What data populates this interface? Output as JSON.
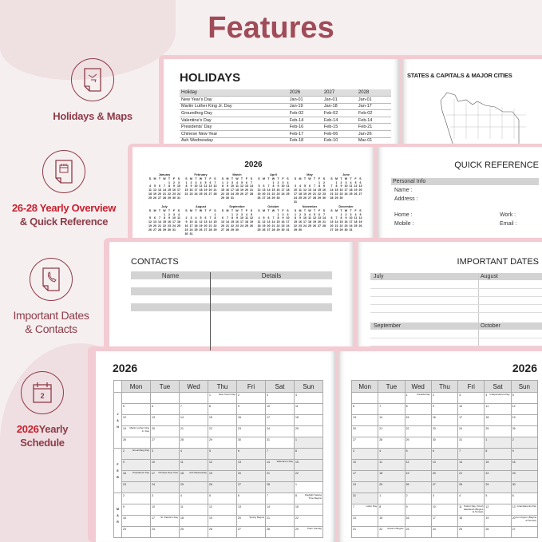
{
  "title": "Features",
  "features": [
    {
      "icon": "map-document-icon",
      "line1": "Holidays & Maps",
      "line1_red": "",
      "line2": ""
    },
    {
      "icon": "notepad-document-icon",
      "line1": "",
      "line1_red": "26-28 Yearly Overview",
      "line2": "& Quick Reference"
    },
    {
      "icon": "phone-document-icon",
      "line1": "Important Dates",
      "line1_red": "",
      "line2": "& Contacts"
    },
    {
      "icon": "calendar-icon",
      "line1": "Yearly",
      "line1_red": "2026",
      "line2": "Schedule",
      "calendar_number": "2"
    }
  ],
  "holidays": {
    "title": "HOLIDAYS",
    "headers": [
      "Holiday",
      "2026",
      "2027",
      "2028"
    ],
    "rows": [
      [
        "New Year's Day",
        "Jan-01",
        "Jan-01",
        "Jan-01"
      ],
      [
        "Martin Luther King Jr. Day",
        "Jan-19",
        "Jan-18",
        "Jan-17"
      ],
      [
        "Groundhog Day",
        "Feb-02",
        "Feb-02",
        "Feb-02"
      ],
      [
        "Valentine's Day",
        "Feb-14",
        "Feb-14",
        "Feb-14"
      ],
      [
        "Presidents' Day",
        "Feb-16",
        "Feb-15",
        "Feb-21"
      ],
      [
        "Chinese New Year",
        "Feb-17",
        "Feb-06",
        "Jan-26"
      ],
      [
        "Ash Wednesday",
        "Feb-18",
        "Feb-10",
        "Mar-01"
      ]
    ]
  },
  "map": {
    "title": "STATES & CAPITALS & MAJOR CITIES"
  },
  "yearly": {
    "year": "2026",
    "dow": [
      "S",
      "M",
      "T",
      "W",
      "T",
      "F",
      "S"
    ],
    "months": [
      {
        "name": "January",
        "start": 4,
        "days": 31
      },
      {
        "name": "February",
        "start": 0,
        "days": 28
      },
      {
        "name": "March",
        "start": 0,
        "days": 31
      },
      {
        "name": "April",
        "start": 3,
        "days": 30
      },
      {
        "name": "May",
        "start": 5,
        "days": 31
      },
      {
        "name": "June",
        "start": 1,
        "days": 30
      },
      {
        "name": "July",
        "start": 3,
        "days": 31
      },
      {
        "name": "August",
        "start": 6,
        "days": 31
      },
      {
        "name": "September",
        "start": 2,
        "days": 30
      },
      {
        "name": "October",
        "start": 4,
        "days": 31
      },
      {
        "name": "November",
        "start": 0,
        "days": 30
      },
      {
        "name": "December",
        "start": 2,
        "days": 31
      }
    ]
  },
  "quick": {
    "title": "QUICK REFERENCE",
    "section": "Personal Info",
    "name": "Name :",
    "address": "Address :",
    "home": "Home :",
    "work": "Work :",
    "mobile": "Mobile :",
    "email": "Email :"
  },
  "contacts": {
    "title": "CONTACTS",
    "col1": "Name",
    "col2": "Details"
  },
  "important": {
    "title": "IMPORTANT DATES",
    "m1": "July",
    "m2": "August",
    "m3": "September",
    "m4": "October"
  },
  "schedule": {
    "year": "2026",
    "days": [
      "Mon",
      "Tue",
      "Wed",
      "Thu",
      "Fri",
      "Sat",
      "Sun"
    ],
    "left": {
      "months": [
        {
          "label": "JAN",
          "rows": 5
        },
        {
          "label": "FEB",
          "rows": 4
        },
        {
          "label": "MAR",
          "rows": 4
        }
      ],
      "weeks": [
        [
          "",
          "",
          "",
          "1",
          "2",
          "3",
          "4"
        ],
        [
          "5",
          "6",
          "7",
          "8",
          "9",
          "10",
          "11"
        ],
        [
          "12",
          "13",
          "14",
          "15",
          "16",
          "17",
          "18"
        ],
        [
          "19",
          "20",
          "21",
          "22",
          "23",
          "24",
          "25"
        ],
        [
          "26",
          "27",
          "28",
          "29",
          "30",
          "31",
          "1"
        ],
        [
          "2",
          "3",
          "4",
          "5",
          "6",
          "7",
          "8"
        ],
        [
          "9",
          "10",
          "11",
          "12",
          "13",
          "14",
          "15"
        ],
        [
          "16",
          "17",
          "18",
          "19",
          "20",
          "21",
          "22"
        ],
        [
          "23",
          "24",
          "25",
          "26",
          "27",
          "28",
          "1"
        ],
        [
          "2",
          "3",
          "4",
          "5",
          "6",
          "7",
          "8"
        ],
        [
          "9",
          "10",
          "11",
          "12",
          "13",
          "14",
          "15"
        ],
        [
          "16",
          "17",
          "18",
          "19",
          "20",
          "21",
          "22"
        ],
        [
          "23",
          "24",
          "25",
          "26",
          "27",
          "28",
          "29"
        ]
      ],
      "shaded_from": [
        4,
        6
      ],
      "shaded_to": [
        8,
        5
      ],
      "events": {
        "0-3": "New Year's Day",
        "3-0": "Martin Luther King Jr. Day",
        "5-0": "Groundhog Day",
        "6-5": "Valentine's Day",
        "7-0": "Presidents' Day",
        "7-1": "Chinese New Year",
        "7-2": "Ash Wednesday",
        "8-6": "",
        "9-6": "Daylight Saving Time Begins",
        "11-1": "St. Patrick's Day",
        "11-4": "Spring Begins",
        "12-6": "Palm Sunday"
      }
    },
    "right": {
      "weeks": [
        [
          "",
          "",
          "1",
          "2",
          "3",
          "4",
          "5"
        ],
        [
          "6",
          "7",
          "8",
          "9",
          "10",
          "11",
          "12"
        ],
        [
          "13",
          "14",
          "15",
          "16",
          "17",
          "18",
          "19"
        ],
        [
          "20",
          "21",
          "22",
          "23",
          "24",
          "25",
          "26"
        ],
        [
          "27",
          "28",
          "29",
          "30",
          "31",
          "1",
          "2"
        ],
        [
          "3",
          "4",
          "5",
          "6",
          "7",
          "8",
          "9"
        ],
        [
          "10",
          "11",
          "12",
          "13",
          "14",
          "15",
          "16"
        ],
        [
          "17",
          "18",
          "19",
          "20",
          "21",
          "22",
          "23"
        ],
        [
          "24",
          "25",
          "26",
          "27",
          "28",
          "29",
          "30"
        ],
        [
          "31",
          "1",
          "2",
          "3",
          "4",
          "5",
          "6"
        ],
        [
          "7",
          "8",
          "9",
          "10",
          "11",
          "12",
          "13"
        ],
        [
          "14",
          "15",
          "16",
          "17",
          "18",
          "19",
          "20"
        ],
        [
          "21",
          "22",
          "23",
          "24",
          "25",
          "26",
          "27"
        ]
      ],
      "shaded_from": [
        4,
        5
      ],
      "shaded_to": [
        9,
        0
      ],
      "events": {
        "0-2": "Canada Day",
        "0-5": "Independence Day",
        "10-0": "Labor Day",
        "10-4": "Patriot Day / Rosh Hashanah (Begins at Sunset)",
        "10-6": "Grandparents Day",
        "11-6": "Yom Kippur (Begins at Sunset)",
        "12-1": "Autumn Begins"
      }
    }
  },
  "colors": {
    "accent": "#a04b58",
    "red": "#c8202e",
    "book": "#f3cbd2",
    "header_gray": "#dddddd"
  }
}
